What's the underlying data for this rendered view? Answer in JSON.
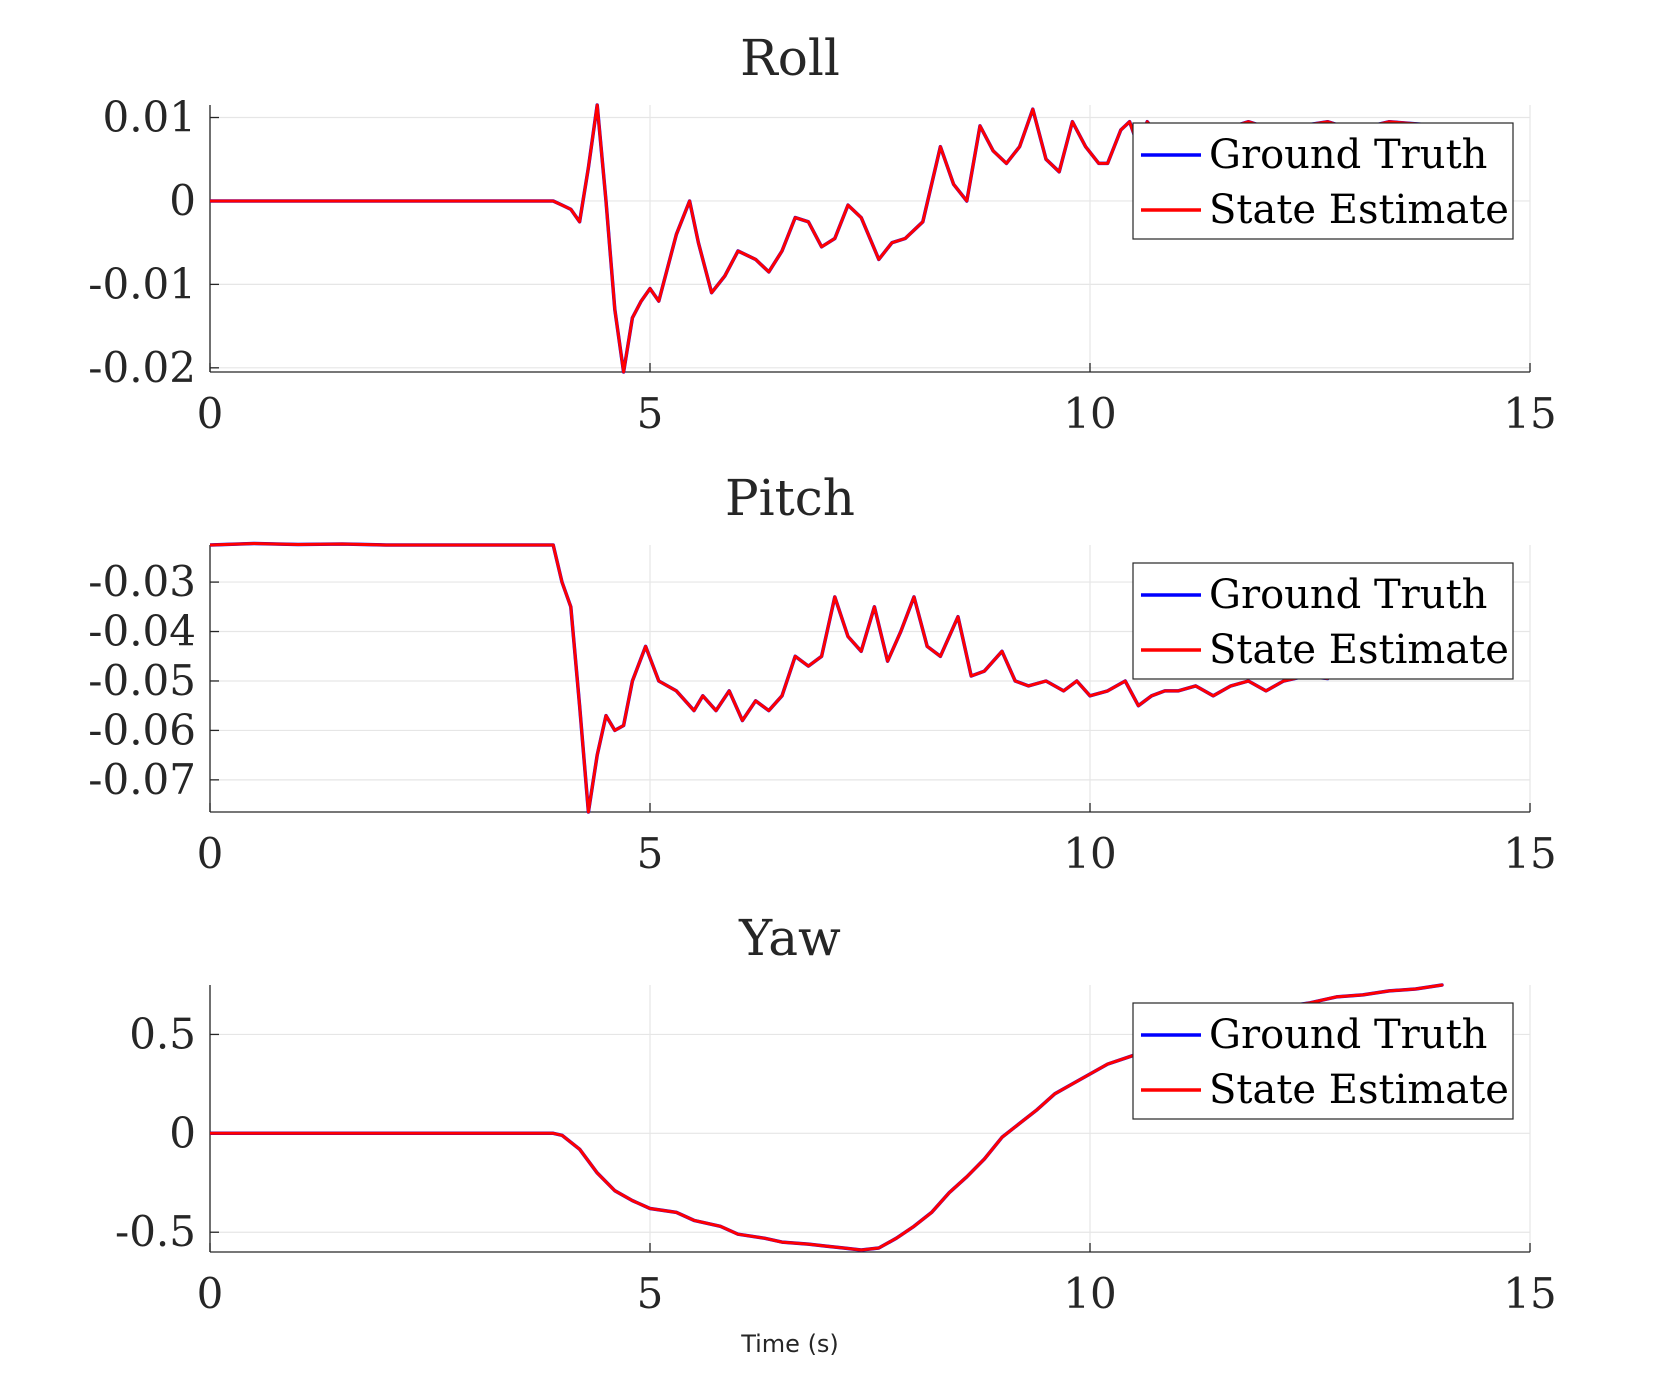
{
  "chart_data": [
    {
      "type": "line",
      "title": "Roll",
      "xlabel": "",
      "ylabel": "",
      "xlim": [
        0,
        15
      ],
      "ylim": [
        -0.0205,
        0.0115
      ],
      "xticks": [
        0,
        5,
        10,
        15
      ],
      "xtick_labels": [
        "0",
        "5",
        "10",
        "15"
      ],
      "yticks": [
        0.01,
        0,
        -0.01,
        -0.02
      ],
      "ytick_labels": [
        "0.01",
        "0",
        "-0.01",
        "-0.02"
      ],
      "grid": true,
      "legend": "top-right",
      "series": [
        {
          "name": "Ground Truth",
          "color": "#0000ff",
          "x": [
            0,
            1,
            2,
            3,
            3.9,
            4.0,
            4.1,
            4.2,
            4.3,
            4.4,
            4.5,
            4.6,
            4.7,
            4.8,
            4.9,
            5.0,
            5.1,
            5.2,
            5.3,
            5.45,
            5.55,
            5.7,
            5.85,
            6.0,
            6.2,
            6.35,
            6.5,
            6.65,
            6.8,
            6.95,
            7.1,
            7.25,
            7.4,
            7.6,
            7.75,
            7.9,
            8.1,
            8.3,
            8.45,
            8.6,
            8.75,
            8.9,
            9.05,
            9.2,
            9.35,
            9.5,
            9.65,
            9.8,
            9.95,
            10.1,
            10.2,
            10.35,
            10.45,
            10.55,
            10.65,
            10.8,
            11.0,
            11.2,
            11.5,
            11.8,
            12.1,
            12.4,
            12.7,
            13.0,
            13.4,
            14.0
          ],
          "y": [
            0,
            0,
            0,
            0,
            0,
            -0.0005,
            -0.001,
            -0.0025,
            0.004,
            0.0115,
            0.0,
            -0.013,
            -0.0205,
            -0.014,
            -0.012,
            -0.0105,
            -0.012,
            -0.008,
            -0.004,
            0.0,
            -0.005,
            -0.011,
            -0.009,
            -0.006,
            -0.007,
            -0.0085,
            -0.006,
            -0.002,
            -0.0025,
            -0.0055,
            -0.0045,
            -0.0005,
            -0.002,
            -0.007,
            -0.005,
            -0.0045,
            -0.0025,
            0.0065,
            0.002,
            0.0,
            0.009,
            0.006,
            0.0045,
            0.0065,
            0.011,
            0.005,
            0.0035,
            0.0095,
            0.0065,
            0.0045,
            0.0045,
            0.0085,
            0.0095,
            0.0065,
            0.0095,
            0.0075,
            0.0085,
            0.009,
            0.0085,
            0.0095,
            0.0085,
            0.009,
            0.0095,
            0.0085,
            0.0095,
            0.009
          ]
        },
        {
          "name": "State Estimate",
          "color": "#ff0000",
          "x": [
            0,
            1,
            2,
            3,
            3.9,
            4.0,
            4.1,
            4.2,
            4.3,
            4.4,
            4.5,
            4.6,
            4.7,
            4.8,
            4.9,
            5.0,
            5.1,
            5.2,
            5.3,
            5.45,
            5.55,
            5.7,
            5.85,
            6.0,
            6.2,
            6.35,
            6.5,
            6.65,
            6.8,
            6.95,
            7.1,
            7.25,
            7.4,
            7.6,
            7.75,
            7.9,
            8.1,
            8.3,
            8.45,
            8.6,
            8.75,
            8.9,
            9.05,
            9.2,
            9.35,
            9.5,
            9.65,
            9.8,
            9.95,
            10.1,
            10.2,
            10.35,
            10.45,
            10.55,
            10.65,
            10.8,
            11.0,
            11.2,
            11.5,
            11.8,
            12.1,
            12.4,
            12.7,
            13.0,
            13.4,
            14.0
          ],
          "y": [
            0,
            0,
            0,
            0,
            0,
            -0.0005,
            -0.001,
            -0.0025,
            0.004,
            0.0115,
            0.0,
            -0.013,
            -0.0205,
            -0.014,
            -0.012,
            -0.0105,
            -0.012,
            -0.008,
            -0.004,
            0.0,
            -0.005,
            -0.011,
            -0.009,
            -0.006,
            -0.007,
            -0.0085,
            -0.006,
            -0.002,
            -0.0025,
            -0.0055,
            -0.0045,
            -0.0005,
            -0.002,
            -0.007,
            -0.005,
            -0.0045,
            -0.0025,
            0.0065,
            0.002,
            0.0,
            0.009,
            0.006,
            0.0045,
            0.0065,
            0.011,
            0.005,
            0.0035,
            0.0095,
            0.0065,
            0.0045,
            0.0045,
            0.0085,
            0.0095,
            0.0065,
            0.0095,
            0.0075,
            0.0085,
            0.009,
            0.0085,
            0.0095,
            0.0085,
            0.009,
            0.0095,
            0.0085,
            0.0095,
            0.009
          ]
        }
      ]
    },
    {
      "type": "line",
      "title": "Pitch",
      "xlabel": "",
      "ylabel": "",
      "xlim": [
        0,
        15
      ],
      "ylim": [
        -0.0765,
        -0.0225
      ],
      "xticks": [
        0,
        5,
        10,
        15
      ],
      "xtick_labels": [
        "0",
        "5",
        "10",
        "15"
      ],
      "yticks": [
        -0.03,
        -0.04,
        -0.05,
        -0.06,
        -0.07
      ],
      "ytick_labels": [
        "-0.03",
        "-0.04",
        "-0.05",
        "-0.06",
        "-0.07"
      ],
      "grid": true,
      "legend": "top-right",
      "series": [
        {
          "name": "Ground Truth",
          "color": "#0000ff",
          "x": [
            0,
            0.5,
            1,
            1.5,
            2,
            3,
            3.9,
            4.0,
            4.1,
            4.2,
            4.3,
            4.4,
            4.5,
            4.6,
            4.7,
            4.8,
            4.95,
            5.1,
            5.3,
            5.5,
            5.6,
            5.75,
            5.9,
            6.05,
            6.2,
            6.35,
            6.5,
            6.65,
            6.8,
            6.95,
            7.1,
            7.25,
            7.4,
            7.55,
            7.7,
            7.85,
            8.0,
            8.15,
            8.3,
            8.5,
            8.65,
            8.8,
            9.0,
            9.15,
            9.3,
            9.5,
            9.7,
            9.85,
            10.0,
            10.2,
            10.4,
            10.55,
            10.7,
            10.85,
            11.0,
            11.2,
            11.4,
            11.6,
            11.8,
            12.0,
            12.2,
            12.45,
            12.7
          ],
          "y": [
            -0.0225,
            -0.0222,
            -0.0224,
            -0.0223,
            -0.0225,
            -0.0225,
            -0.0225,
            -0.03,
            -0.035,
            -0.055,
            -0.0765,
            -0.065,
            -0.057,
            -0.06,
            -0.059,
            -0.05,
            -0.043,
            -0.05,
            -0.052,
            -0.056,
            -0.053,
            -0.056,
            -0.052,
            -0.058,
            -0.054,
            -0.056,
            -0.053,
            -0.045,
            -0.047,
            -0.045,
            -0.033,
            -0.041,
            -0.044,
            -0.035,
            -0.046,
            -0.04,
            -0.033,
            -0.043,
            -0.045,
            -0.037,
            -0.049,
            -0.048,
            -0.044,
            -0.05,
            -0.051,
            -0.05,
            -0.052,
            -0.05,
            -0.053,
            -0.052,
            -0.05,
            -0.055,
            -0.053,
            -0.052,
            -0.052,
            -0.051,
            -0.053,
            -0.051,
            -0.05,
            -0.052,
            -0.05,
            -0.049,
            -0.0495
          ]
        },
        {
          "name": "State Estimate",
          "color": "#ff0000",
          "x": [
            0,
            0.5,
            1,
            1.5,
            2,
            3,
            3.9,
            4.0,
            4.1,
            4.2,
            4.3,
            4.4,
            4.5,
            4.6,
            4.7,
            4.8,
            4.95,
            5.1,
            5.3,
            5.5,
            5.6,
            5.75,
            5.9,
            6.05,
            6.2,
            6.35,
            6.5,
            6.65,
            6.8,
            6.95,
            7.1,
            7.25,
            7.4,
            7.55,
            7.7,
            7.85,
            8.0,
            8.15,
            8.3,
            8.5,
            8.65,
            8.8,
            9.0,
            9.15,
            9.3,
            9.5,
            9.7,
            9.85,
            10.0,
            10.2,
            10.4,
            10.55,
            10.7,
            10.85,
            11.0,
            11.2,
            11.4,
            11.6,
            11.8,
            12.0,
            12.2,
            12.45,
            12.7
          ],
          "y": [
            -0.0225,
            -0.0222,
            -0.0224,
            -0.0223,
            -0.0225,
            -0.0225,
            -0.0225,
            -0.03,
            -0.035,
            -0.055,
            -0.0765,
            -0.065,
            -0.057,
            -0.06,
            -0.059,
            -0.05,
            -0.043,
            -0.05,
            -0.052,
            -0.056,
            -0.053,
            -0.056,
            -0.052,
            -0.058,
            -0.054,
            -0.056,
            -0.053,
            -0.045,
            -0.047,
            -0.045,
            -0.033,
            -0.041,
            -0.044,
            -0.035,
            -0.046,
            -0.04,
            -0.033,
            -0.043,
            -0.045,
            -0.037,
            -0.049,
            -0.048,
            -0.044,
            -0.05,
            -0.051,
            -0.05,
            -0.052,
            -0.05,
            -0.053,
            -0.052,
            -0.05,
            -0.055,
            -0.053,
            -0.052,
            -0.052,
            -0.051,
            -0.053,
            -0.051,
            -0.05,
            -0.052,
            -0.05,
            -0.049,
            -0.0495
          ]
        }
      ]
    },
    {
      "type": "line",
      "title": "Yaw",
      "xlabel": "Time (s)",
      "ylabel": "",
      "xlim": [
        0,
        15
      ],
      "ylim": [
        -0.6,
        0.75
      ],
      "xticks": [
        0,
        5,
        10,
        15
      ],
      "xtick_labels": [
        "0",
        "5",
        "10",
        "15"
      ],
      "yticks": [
        0.5,
        0,
        -0.5
      ],
      "ytick_labels": [
        "0.5",
        "0",
        "-0.5"
      ],
      "grid": true,
      "legend": "top-right",
      "series": [
        {
          "name": "Ground Truth",
          "color": "#0000ff",
          "x": [
            0,
            1,
            2,
            3,
            3.9,
            4.0,
            4.2,
            4.4,
            4.6,
            4.8,
            5.0,
            5.3,
            5.5,
            5.8,
            6.0,
            6.3,
            6.5,
            6.8,
            7.0,
            7.2,
            7.4,
            7.6,
            7.8,
            8.0,
            8.2,
            8.4,
            8.6,
            8.8,
            9.0,
            9.2,
            9.4,
            9.6,
            9.8,
            10.0,
            10.2,
            10.4,
            10.6,
            10.8,
            11.0,
            11.3,
            11.6,
            11.9,
            12.2,
            12.5,
            12.8,
            13.1,
            13.4,
            13.7,
            14.0
          ],
          "y": [
            0,
            0,
            0,
            0,
            0,
            -0.01,
            -0.08,
            -0.2,
            -0.29,
            -0.34,
            -0.38,
            -0.4,
            -0.44,
            -0.47,
            -0.51,
            -0.53,
            -0.55,
            -0.56,
            -0.57,
            -0.58,
            -0.59,
            -0.58,
            -0.53,
            -0.47,
            -0.4,
            -0.3,
            -0.22,
            -0.13,
            -0.02,
            0.05,
            0.12,
            0.2,
            0.25,
            0.3,
            0.35,
            0.38,
            0.41,
            0.45,
            0.5,
            0.55,
            0.58,
            0.62,
            0.64,
            0.66,
            0.69,
            0.7,
            0.72,
            0.73,
            0.75
          ]
        },
        {
          "name": "State Estimate",
          "color": "#ff0000",
          "x": [
            0,
            1,
            2,
            3,
            3.9,
            4.0,
            4.2,
            4.4,
            4.6,
            4.8,
            5.0,
            5.3,
            5.5,
            5.8,
            6.0,
            6.3,
            6.5,
            6.8,
            7.0,
            7.2,
            7.4,
            7.6,
            7.8,
            8.0,
            8.2,
            8.4,
            8.6,
            8.8,
            9.0,
            9.2,
            9.4,
            9.6,
            9.8,
            10.0,
            10.2,
            10.4,
            10.6,
            10.8,
            11.0,
            11.3,
            11.6,
            11.9,
            12.2,
            12.5,
            12.8,
            13.1,
            13.4,
            13.7,
            14.0
          ],
          "y": [
            0,
            0,
            0,
            0,
            0,
            -0.01,
            -0.08,
            -0.2,
            -0.29,
            -0.34,
            -0.38,
            -0.4,
            -0.44,
            -0.47,
            -0.51,
            -0.53,
            -0.55,
            -0.56,
            -0.57,
            -0.58,
            -0.59,
            -0.58,
            -0.53,
            -0.47,
            -0.4,
            -0.3,
            -0.22,
            -0.13,
            -0.02,
            0.05,
            0.12,
            0.2,
            0.25,
            0.3,
            0.35,
            0.38,
            0.41,
            0.45,
            0.5,
            0.55,
            0.58,
            0.62,
            0.64,
            0.66,
            0.69,
            0.7,
            0.72,
            0.73,
            0.75
          ]
        }
      ]
    }
  ]
}
